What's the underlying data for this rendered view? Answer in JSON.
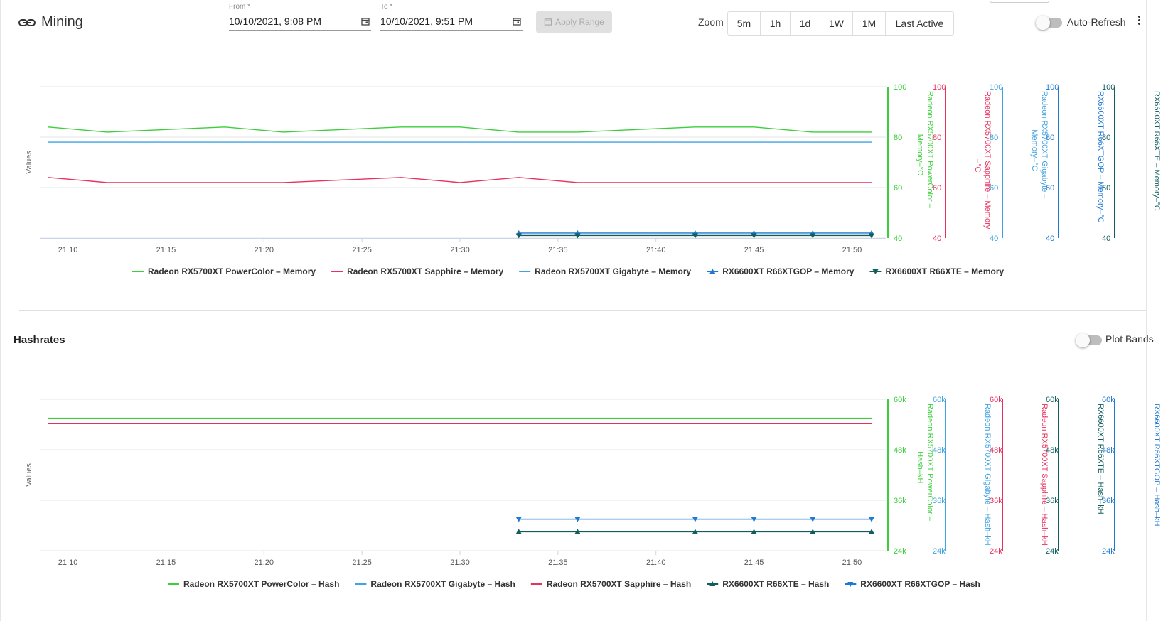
{
  "header": {
    "title": "Mining",
    "from_label": "From *",
    "from_value": "10/10/2021, 9:08 PM",
    "to_label": "To *",
    "to_value": "10/10/2021, 9:51 PM",
    "apply_label": "Apply Range",
    "zoom_label": "Zoom",
    "zoom_options": [
      "5m",
      "1h",
      "1d",
      "1W",
      "1M",
      "Last Active"
    ],
    "auto_refresh_label": "Auto-Refresh",
    "auto_refresh_on": false
  },
  "hashrates_section": {
    "title": "Hashrates",
    "plot_bands_label": "Plot Bands",
    "plot_bands_on": false
  },
  "chart_data": [
    {
      "type": "line",
      "ylabel": "Values",
      "x": [
        "21:09",
        "21:12",
        "21:15",
        "21:18",
        "21:21",
        "21:24",
        "21:27",
        "21:30",
        "21:33",
        "21:36",
        "21:39",
        "21:42",
        "21:45",
        "21:48",
        "21:51"
      ],
      "xticks": [
        "21:10",
        "21:15",
        "21:20",
        "21:25",
        "21:30",
        "21:35",
        "21:40",
        "21:45",
        "21:50"
      ],
      "xtick_values": [
        "21:10",
        "21:15",
        "21:20",
        "21:25",
        "21:30",
        "21:35",
        "21:40",
        "21:45",
        "21:50"
      ],
      "ylim": [
        40,
        100
      ],
      "yticks": [
        "40",
        "60",
        "80",
        "100"
      ],
      "series": [
        {
          "name": "Radeon RX5700XT PowerColor – Memory",
          "axis_title": "Radeon RX5700XT PowerColor – Memory–°C",
          "color": "#3ccf3c",
          "marker": "none",
          "values": [
            84,
            82,
            83,
            84,
            82,
            83,
            84,
            84,
            82,
            82,
            83,
            84,
            84,
            82,
            82
          ]
        },
        {
          "name": "Radeon RX5700XT Sapphire – Memory",
          "axis_title": "Radeon RX5700XT Sapphire – Memory –°C",
          "color": "#e8315d",
          "marker": "none",
          "values": [
            64,
            62,
            62,
            62,
            62,
            63,
            64,
            62,
            64,
            62,
            62,
            62,
            62,
            62,
            62
          ]
        },
        {
          "name": "Radeon RX5700XT Gigabyte – Memory",
          "axis_title": "Radeon RX5700XT Gigabyte – Memory–°C",
          "color": "#3fa3e0",
          "marker": "none",
          "values": [
            78,
            78,
            78,
            78,
            78,
            78,
            78,
            78,
            78,
            78,
            78,
            78,
            78,
            78,
            78
          ]
        },
        {
          "name": "RX6600XT R66XTGOP – Memory",
          "axis_title": "RX6600XT R66XTGOP – Memory–°C",
          "color": "#1f78d1",
          "marker": "triangle-up",
          "x": [
            "21:33",
            "21:36",
            "21:42",
            "21:45",
            "21:48",
            "21:51"
          ],
          "values": [
            42,
            42,
            42,
            42,
            42,
            42
          ]
        },
        {
          "name": "RX6600XT R66XTE – Memory",
          "axis_title": "RX6600XT R66XTE – Memory–°C",
          "color": "#105e5e",
          "marker": "triangle-down",
          "x": [
            "21:33",
            "21:36",
            "21:42",
            "21:45",
            "21:48",
            "21:51"
          ],
          "values": [
            41,
            41,
            41,
            41,
            41,
            41
          ]
        }
      ]
    },
    {
      "type": "line",
      "ylabel": "Values",
      "x": [
        "21:09",
        "21:51"
      ],
      "xticks": [
        "21:10",
        "21:15",
        "21:20",
        "21:25",
        "21:30",
        "21:35",
        "21:40",
        "21:45",
        "21:50"
      ],
      "xtick_values": [
        "21:10",
        "21:15",
        "21:20",
        "21:25",
        "21:30",
        "21:35",
        "21:40",
        "21:45",
        "21:50"
      ],
      "ylim": [
        24,
        60
      ],
      "yticks": [
        "24k",
        "36k",
        "48k",
        "60k"
      ],
      "series": [
        {
          "name": "Radeon RX5700XT PowerColor – Hash",
          "axis_title": "Radeon RX5700XT PowerColor – Hash–kH",
          "color": "#3ccf3c",
          "marker": "none",
          "values": [
            55.5,
            55.5
          ]
        },
        {
          "name": "Radeon RX5700XT Gigabyte – Hash",
          "axis_title": "Radeon RX5700XT Gigabyte – Hash–kH",
          "color": "#3fa3e0",
          "marker": "none",
          "values": [
            54.2,
            54.2
          ]
        },
        {
          "name": "Radeon RX5700XT Sapphire – Hash",
          "axis_title": "Radeon RX5700XT Sapphire – Hash–kH",
          "color": "#e8315d",
          "marker": "none",
          "values": [
            54.2,
            54.2
          ]
        },
        {
          "name": "RX6600XT R66XTE – Hash",
          "axis_title": "RX6600XT R66XTE – Hash–kH",
          "color": "#105e5e",
          "marker": "triangle-up",
          "x": [
            "21:33",
            "21:36",
            "21:42",
            "21:45",
            "21:48",
            "21:51"
          ],
          "values": [
            28.5,
            28.5,
            28.5,
            28.5,
            28.5,
            28.5
          ]
        },
        {
          "name": "RX6600XT R66XTGOP – Hash",
          "axis_title": "RX6600XT R66XTGOP – Hash–kH",
          "color": "#1f78d1",
          "marker": "triangle-down",
          "x": [
            "21:33",
            "21:36",
            "21:42",
            "21:45",
            "21:48",
            "21:51"
          ],
          "values": [
            31.5,
            31.5,
            31.5,
            31.5,
            31.5,
            31.5
          ]
        }
      ]
    }
  ]
}
